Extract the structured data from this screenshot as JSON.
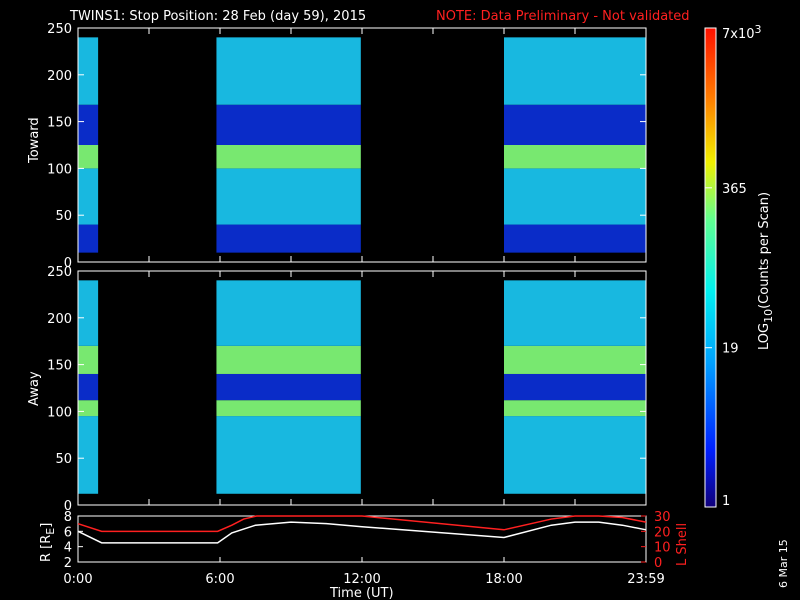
{
  "header": {
    "title": "TWINS1: Stop Position: 28 Feb (day  59), 2015",
    "note": "NOTE: Data Preliminary - Not validated"
  },
  "footer": {
    "stamp": "6 Mar 15"
  },
  "colors": {
    "background": "#000000",
    "axis": "#ffffff",
    "note": "#ff2020",
    "lshell": "#ff2020",
    "r_line": "#ffffff"
  },
  "chart_data": [
    {
      "type": "heatmap",
      "panel": "Toward",
      "ylabel": "Toward",
      "ylim": [
        0,
        250
      ],
      "yticks": [
        "0",
        "50",
        "100",
        "150",
        "200",
        "250"
      ],
      "x_range_hours": [
        0,
        24
      ],
      "data_segments_hours": [
        [
          0.0,
          0.85
        ],
        [
          5.85,
          11.95
        ],
        [
          18.0,
          24.0
        ]
      ],
      "bands": [
        {
          "from": 10,
          "to": 40,
          "level": "low"
        },
        {
          "from": 40,
          "to": 100,
          "level": "medium"
        },
        {
          "from": 100,
          "to": 125,
          "level": "high"
        },
        {
          "from": 125,
          "to": 168,
          "level": "low"
        },
        {
          "from": 168,
          "to": 240,
          "level": "medium"
        }
      ]
    },
    {
      "type": "heatmap",
      "panel": "Away",
      "ylabel": "Away",
      "ylim": [
        0,
        250
      ],
      "yticks": [
        "0",
        "50",
        "100",
        "150",
        "200",
        "250"
      ],
      "x_range_hours": [
        0,
        24
      ],
      "data_segments_hours": [
        [
          0.0,
          0.85
        ],
        [
          5.85,
          11.95
        ],
        [
          18.0,
          24.0
        ]
      ],
      "bands": [
        {
          "from": 12,
          "to": 95,
          "level": "medium"
        },
        {
          "from": 95,
          "to": 112,
          "level": "high"
        },
        {
          "from": 112,
          "to": 140,
          "level": "low"
        },
        {
          "from": 140,
          "to": 170,
          "level": "high"
        },
        {
          "from": 170,
          "to": 240,
          "level": "medium"
        }
      ]
    },
    {
      "type": "line",
      "panel": "ephemeris",
      "xlabel": "Time (UT)",
      "xticks": [
        "0:00",
        "6:00",
        "12:00",
        "18:00",
        "23:59"
      ],
      "x_hours": [
        0,
        6,
        12,
        18,
        24
      ],
      "left_axis": {
        "label": "R [R_E]",
        "label_main": "R [R",
        "label_sub": "E",
        "label_end": "]",
        "ylim": [
          2,
          8
        ],
        "yticks": [
          "2",
          "4",
          "6",
          "8"
        ]
      },
      "right_axis": {
        "label": "L Shell",
        "ylim": [
          0,
          30
        ],
        "yticks": [
          "0",
          "10",
          "20",
          "30"
        ]
      },
      "series": [
        {
          "name": "R",
          "axis": "left",
          "x": [
            0,
            1,
            5.9,
            6.5,
            7.5,
            9,
            10.5,
            12,
            18,
            20,
            21,
            22,
            23,
            24
          ],
          "y": [
            6.0,
            4.5,
            4.5,
            5.8,
            6.8,
            7.2,
            7.0,
            6.6,
            5.2,
            6.8,
            7.2,
            7.2,
            6.8,
            6.2
          ]
        },
        {
          "name": "L Shell",
          "axis": "right",
          "x": [
            0,
            1,
            5.9,
            6.5,
            7.0,
            7.55,
            12,
            18,
            20,
            21,
            22,
            23,
            24
          ],
          "y": [
            25,
            20,
            20,
            24,
            28,
            31,
            31,
            21,
            28,
            30,
            30,
            29,
            26
          ]
        }
      ]
    },
    {
      "type": "heatmap",
      "panel": "colorbar",
      "label": "LOG10(Counts per Scan)",
      "label_main": "LOG",
      "label_sub": "10",
      "label_end": "(Counts per Scan)",
      "scale": "log",
      "range": [
        1,
        7000
      ],
      "ticks": [
        {
          "value": 1,
          "label": "1"
        },
        {
          "value": 19,
          "label": "19"
        },
        {
          "value": 365,
          "label": "365"
        },
        {
          "value": 7000,
          "label": "7x10",
          "sup": "3"
        }
      ]
    }
  ]
}
